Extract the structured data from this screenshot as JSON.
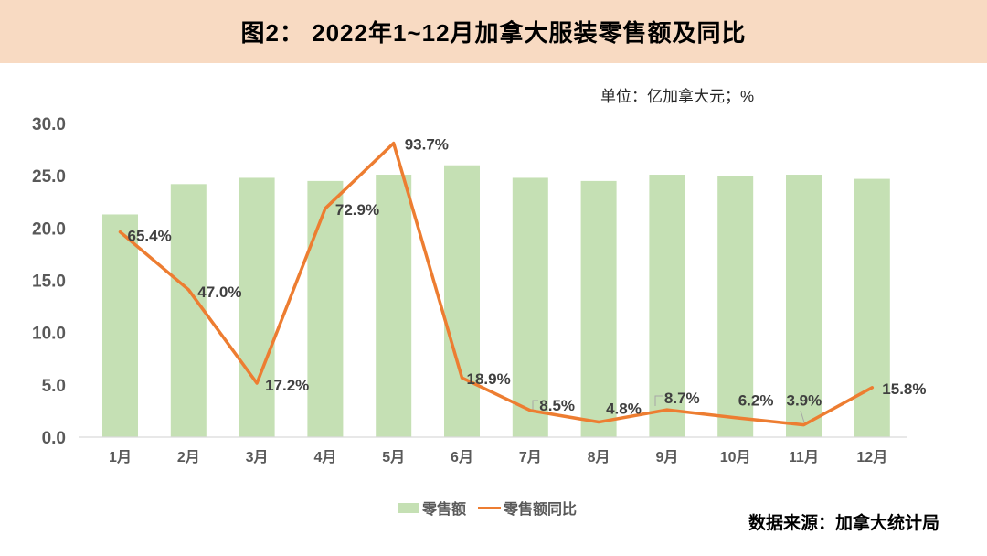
{
  "title": "图2： 2022年1~12月加拿大服装零售额及同比",
  "unit_label": "单位：亿加拿大元；%",
  "source_label": "数据来源：加拿大统计局",
  "legend": {
    "bar_label": "零售额",
    "line_label": "零售额同比"
  },
  "colors": {
    "title_bg": "#F8DAC2",
    "bar": "#C5E0B4",
    "line": "#ED7D31",
    "axis_line": "#D9D9D9",
    "axis_text": "#595959",
    "data_label_text": "#404040",
    "leader_line": "#A6A6A6"
  },
  "chart_data": {
    "type": "bar+line",
    "title": "图2： 2022年1~12月加拿大服装零售额及同比",
    "xlabel": "",
    "ylabel": "单位：亿加拿大元；%",
    "categories": [
      "1月",
      "2月",
      "3月",
      "4月",
      "5月",
      "6月",
      "7月",
      "8月",
      "9月",
      "10月",
      "11月",
      "12月"
    ],
    "series": [
      {
        "name": "零售额",
        "type": "bar",
        "axis": "left",
        "values": [
          21.3,
          24.2,
          24.8,
          24.5,
          25.1,
          26.0,
          24.8,
          24.5,
          25.1,
          25.0,
          25.1,
          24.7
        ]
      },
      {
        "name": "零售额同比",
        "type": "line",
        "axis": "right-hidden",
        "values": [
          65.4,
          47.0,
          17.2,
          72.9,
          93.7,
          18.9,
          8.5,
          4.8,
          8.7,
          6.2,
          3.9,
          15.8
        ],
        "labels": [
          "65.4%",
          "47.0%",
          "17.2%",
          "72.9%",
          "93.7%",
          "18.9%",
          "8.5%",
          "4.8%",
          "8.7%",
          "6.2%",
          "3.9%",
          "15.8%"
        ]
      }
    ],
    "ylim": [
      0,
      30
    ],
    "yticks": [
      "0.0",
      "5.0",
      "10.0",
      "15.0",
      "20.0",
      "25.0",
      "30.0"
    ],
    "y2lim": [
      0,
      100
    ],
    "grid": false,
    "legend_position": "bottom"
  }
}
